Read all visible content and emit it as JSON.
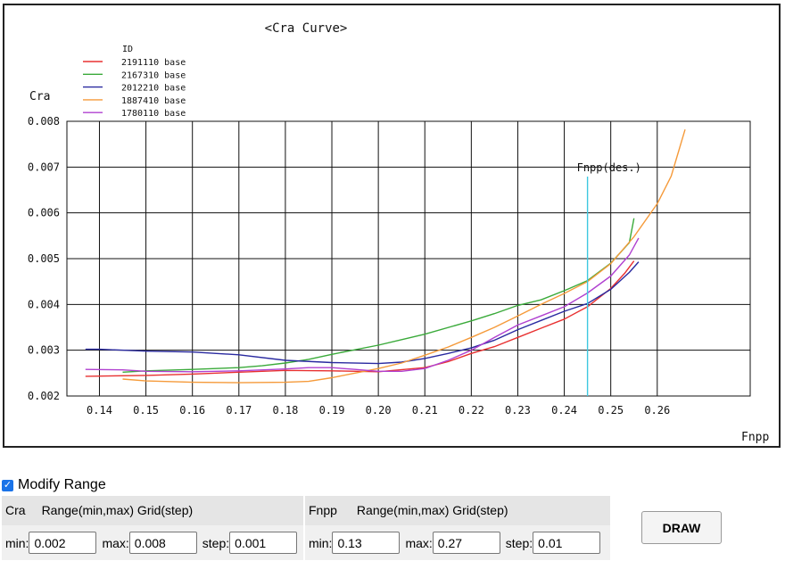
{
  "chart_data": {
    "type": "line",
    "title": "<Cra Curve>",
    "xlabel": "Fnpp",
    "ylabel": "Cra",
    "xlim": [
      0.133,
      0.28
    ],
    "ylim": [
      0.002,
      0.008
    ],
    "x_ticks": [
      "0.14",
      "0.15",
      "0.16",
      "0.17",
      "0.18",
      "0.19",
      "0.20",
      "0.21",
      "0.22",
      "0.23",
      "0.24",
      "0.25",
      "0.26"
    ],
    "y_ticks": [
      "0.002",
      "0.003",
      "0.004",
      "0.005",
      "0.006",
      "0.007",
      "0.008"
    ],
    "grid": true,
    "legend_title": "ID",
    "legend_placement": "top-left",
    "series": [
      {
        "name": "2191110 base",
        "color": "#e83030",
        "points": [
          [
            0.137,
            0.00243
          ],
          [
            0.15,
            0.00245
          ],
          [
            0.16,
            0.00248
          ],
          [
            0.17,
            0.00252
          ],
          [
            0.18,
            0.00256
          ],
          [
            0.19,
            0.00255
          ],
          [
            0.2,
            0.00253
          ],
          [
            0.21,
            0.00262
          ],
          [
            0.215,
            0.00275
          ],
          [
            0.22,
            0.00293
          ],
          [
            0.225,
            0.00308
          ],
          [
            0.23,
            0.00328
          ],
          [
            0.235,
            0.00348
          ],
          [
            0.24,
            0.00368
          ],
          [
            0.245,
            0.00395
          ],
          [
            0.25,
            0.00435
          ],
          [
            0.253,
            0.00468
          ],
          [
            0.255,
            0.00495
          ]
        ]
      },
      {
        "name": "2167310 base",
        "color": "#3aaa3a",
        "points": [
          [
            0.145,
            0.00252
          ],
          [
            0.15,
            0.00255
          ],
          [
            0.16,
            0.00258
          ],
          [
            0.17,
            0.00262
          ],
          [
            0.175,
            0.00266
          ],
          [
            0.18,
            0.00272
          ],
          [
            0.185,
            0.0028
          ],
          [
            0.19,
            0.00291
          ],
          [
            0.2,
            0.00311
          ],
          [
            0.21,
            0.00335
          ],
          [
            0.22,
            0.00364
          ],
          [
            0.225,
            0.0038
          ],
          [
            0.23,
            0.00398
          ],
          [
            0.235,
            0.0041
          ],
          [
            0.24,
            0.0043
          ],
          [
            0.245,
            0.00452
          ],
          [
            0.25,
            0.0049
          ],
          [
            0.254,
            0.00535
          ],
          [
            0.255,
            0.00588
          ]
        ]
      },
      {
        "name": "2012210 base",
        "color": "#2a2aa0",
        "points": [
          [
            0.137,
            0.00302
          ],
          [
            0.14,
            0.00302
          ],
          [
            0.15,
            0.00298
          ],
          [
            0.16,
            0.00296
          ],
          [
            0.17,
            0.0029
          ],
          [
            0.18,
            0.00278
          ],
          [
            0.19,
            0.00273
          ],
          [
            0.2,
            0.00271
          ],
          [
            0.205,
            0.00274
          ],
          [
            0.21,
            0.00282
          ],
          [
            0.215,
            0.00293
          ],
          [
            0.22,
            0.00305
          ],
          [
            0.225,
            0.00322
          ],
          [
            0.23,
            0.00345
          ],
          [
            0.235,
            0.00365
          ],
          [
            0.24,
            0.00385
          ],
          [
            0.245,
            0.00402
          ],
          [
            0.25,
            0.00433
          ],
          [
            0.254,
            0.0047
          ],
          [
            0.256,
            0.00493
          ]
        ]
      },
      {
        "name": "1887410 base",
        "color": "#f59a3a",
        "points": [
          [
            0.145,
            0.00237
          ],
          [
            0.15,
            0.00233
          ],
          [
            0.16,
            0.0023
          ],
          [
            0.17,
            0.00229
          ],
          [
            0.18,
            0.0023
          ],
          [
            0.185,
            0.00232
          ],
          [
            0.19,
            0.0024
          ],
          [
            0.195,
            0.0025
          ],
          [
            0.2,
            0.0026
          ],
          [
            0.205,
            0.00272
          ],
          [
            0.21,
            0.00289
          ],
          [
            0.215,
            0.00307
          ],
          [
            0.22,
            0.00328
          ],
          [
            0.225,
            0.0035
          ],
          [
            0.23,
            0.00375
          ],
          [
            0.235,
            0.004
          ],
          [
            0.24,
            0.00424
          ],
          [
            0.245,
            0.0045
          ],
          [
            0.25,
            0.00489
          ],
          [
            0.255,
            0.00548
          ],
          [
            0.26,
            0.0062
          ],
          [
            0.263,
            0.0068
          ],
          [
            0.266,
            0.00782
          ]
        ]
      },
      {
        "name": "1780110 base",
        "color": "#b040d0",
        "points": [
          [
            0.137,
            0.00258
          ],
          [
            0.145,
            0.00257
          ],
          [
            0.15,
            0.00254
          ],
          [
            0.16,
            0.00253
          ],
          [
            0.17,
            0.00255
          ],
          [
            0.18,
            0.00259
          ],
          [
            0.185,
            0.00262
          ],
          [
            0.19,
            0.00262
          ],
          [
            0.195,
            0.00258
          ],
          [
            0.2,
            0.00254
          ],
          [
            0.205,
            0.00254
          ],
          [
            0.21,
            0.0026
          ],
          [
            0.215,
            0.00278
          ],
          [
            0.22,
            0.003
          ],
          [
            0.225,
            0.00328
          ],
          [
            0.23,
            0.00355
          ],
          [
            0.235,
            0.00375
          ],
          [
            0.24,
            0.00395
          ],
          [
            0.245,
            0.00425
          ],
          [
            0.25,
            0.00462
          ],
          [
            0.254,
            0.00508
          ],
          [
            0.256,
            0.00545
          ]
        ]
      }
    ],
    "vline": {
      "x": 0.245,
      "label": "Fnpp(des.)",
      "color": "#3ec8e0"
    }
  },
  "controls": {
    "modify_range_label": "Modify Range",
    "modify_range_checked": true,
    "cra": {
      "name": "Cra",
      "header": "Range(min,max) Grid(step)",
      "min_label": "min:",
      "min_value": "0.002",
      "max_label": "max:",
      "max_value": "0.008",
      "step_label": "step:",
      "step_value": "0.001"
    },
    "fnpp": {
      "name": "Fnpp",
      "header": "Range(min,max) Grid(step)",
      "min_label": "min:",
      "min_value": "0.13",
      "max_label": "max:",
      "max_value": "0.27",
      "step_label": "step:",
      "step_value": "0.01"
    },
    "draw_label": "DRAW"
  }
}
